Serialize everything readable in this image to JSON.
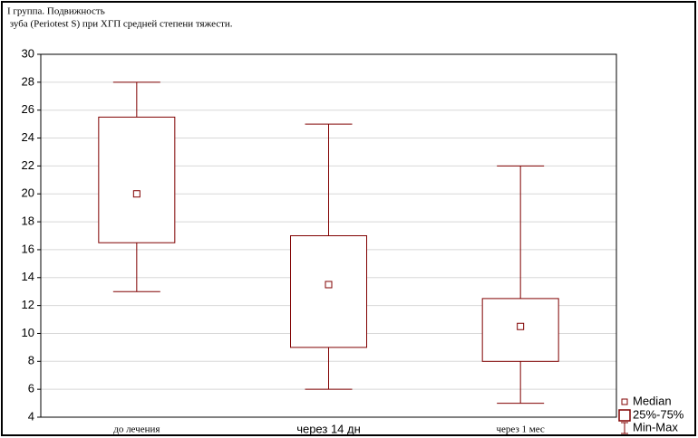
{
  "chart_data": {
    "type": "box",
    "title_lines": [
      "I группа. Подвижность",
      " зуба (Periotest S) при ХГП средней степени тяжести."
    ],
    "categories": [
      "до лечения",
      "через 14 дн",
      "через 1 мес"
    ],
    "color": "#800000",
    "min": [
      13,
      6,
      5
    ],
    "q1": [
      16.5,
      9,
      8
    ],
    "median": [
      20,
      13.5,
      10.5
    ],
    "q3": [
      25.5,
      17,
      12.5
    ],
    "max": [
      28,
      25,
      22
    ],
    "legend": [
      "Median",
      "25%-75%",
      "Min-Max"
    ],
    "legend_position": "lower right",
    "ylim": [
      4,
      30
    ],
    "yticks": [
      4,
      6,
      8,
      10,
      12,
      14,
      16,
      18,
      20,
      22,
      24,
      26,
      28,
      30
    ],
    "grid": true
  }
}
